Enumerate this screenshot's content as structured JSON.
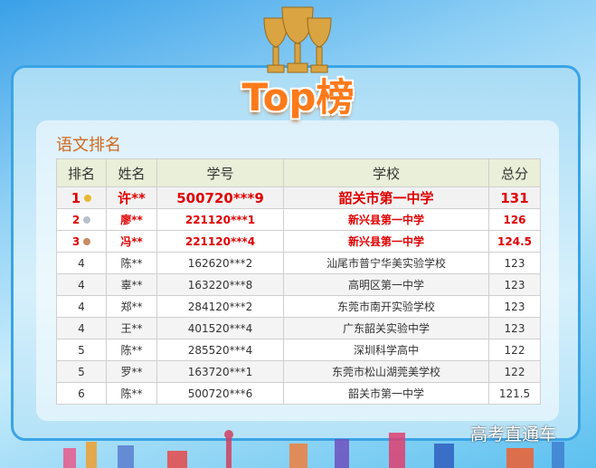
{
  "header": {
    "title": "Top榜"
  },
  "section": {
    "title": "语文排名"
  },
  "table": {
    "columns": [
      "排名",
      "姓名",
      "学号",
      "学校",
      "总分"
    ],
    "rows": [
      [
        "1",
        "许**",
        "500720***9",
        "韶关市第一中学",
        "131"
      ],
      [
        "2",
        "廖**",
        "221120***1",
        "新兴县第一中学",
        "126"
      ],
      [
        "3",
        "冯**",
        "221120***4",
        "新兴县第一中学",
        "124.5"
      ],
      [
        "4",
        "陈**",
        "162620***2",
        "汕尾市普宁华美实验学校",
        "123"
      ],
      [
        "4",
        "辜**",
        "163220***8",
        "高明区第一中学",
        "123"
      ],
      [
        "4",
        "郑**",
        "284120***2",
        "东莞市南开实验学校",
        "123"
      ],
      [
        "4",
        "王**",
        "401520***4",
        "广东韶关实验中学",
        "123"
      ],
      [
        "5",
        "陈**",
        "285520***4",
        "深圳科学高中",
        "122"
      ],
      [
        "5",
        "罗**",
        "163720***1",
        "东莞市松山湖莞美学校",
        "122"
      ],
      [
        "6",
        "陈**",
        "500720***6",
        "韶关市第一中学",
        "121.5"
      ]
    ]
  },
  "watermark": {
    "text": "高考直通车"
  }
}
